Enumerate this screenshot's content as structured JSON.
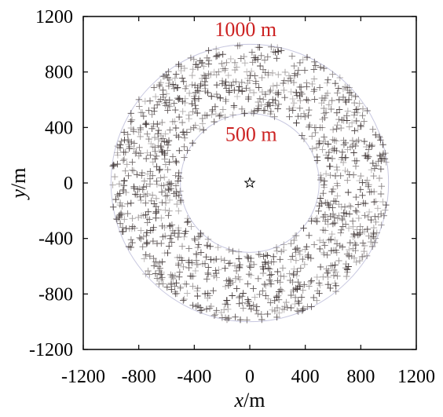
{
  "chart_data": {
    "type": "scatter",
    "title": "",
    "xlabel_var": "x",
    "xlabel_unit": "/m",
    "ylabel_var": "y",
    "ylabel_unit": "/m",
    "xlim": [
      -1200,
      1200
    ],
    "ylim": [
      -1200,
      1200
    ],
    "xticks": [
      "-1200",
      "-800",
      "-400",
      "0",
      "400",
      "800",
      "1200"
    ],
    "yticks": [
      "1200",
      "800",
      "400",
      "0",
      "-400",
      "-800",
      "-1200"
    ],
    "grid": false,
    "legend": "none",
    "rings": [
      {
        "radius": 1000,
        "label": "1000 m",
        "label_x": -30,
        "label_y": 1110
      },
      {
        "radius": 500,
        "label": "500 m",
        "label_x": 10,
        "label_y": 355
      }
    ],
    "center": {
      "x": 0,
      "y": 0,
      "marker": "star"
    },
    "scatter": {
      "marker": "+",
      "inner_radius": 500,
      "outer_radius": 1000,
      "approx_count": 1300,
      "color": "#3a3030"
    },
    "colors": {
      "ring": "#c8c8e0",
      "labels": "#cc2222",
      "points": "#3a3030",
      "axes": "#000000"
    }
  }
}
